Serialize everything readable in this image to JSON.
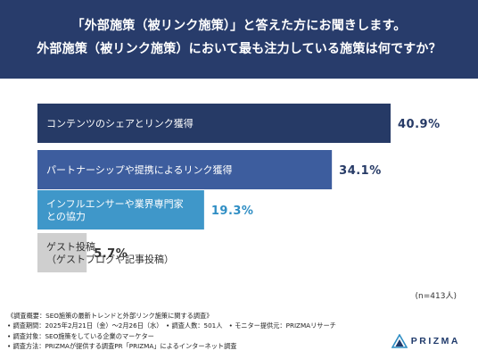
{
  "header": {
    "question_line1": "「外部施策（被リンク施策）」と答えた方にお聞きします。",
    "question_line2": "外部施策（被リンク施策）において最も注力している施策は何ですか？"
  },
  "chart_data": {
    "type": "bar",
    "orientation": "horizontal",
    "categories": [
      [
        "コンテンツのシェアとリンク獲得"
      ],
      [
        "パートナーシップや提携によるリンク獲得"
      ],
      [
        "インフルエンサーや業界専門家",
        "との協力"
      ],
      [
        "ゲスト投稿",
        "（ゲストブログや記事投稿）"
      ]
    ],
    "values": [
      40.9,
      34.1,
      19.3,
      5.7
    ],
    "value_labels": [
      "40.9%",
      "34.1%",
      "19.3%",
      "5.7%"
    ],
    "bar_colors": [
      "#263a66",
      "#3d5d9e",
      "#3f97c9",
      "#cfcfcf"
    ],
    "label_colors": [
      "#ffffff",
      "#ffffff",
      "#ffffff",
      "#333333"
    ],
    "value_label_colors": [
      "#263a66",
      "#263a66",
      "#2f8ec4",
      "#333333"
    ],
    "xlim": [
      0,
      40.9
    ],
    "legend": "none",
    "grid": false
  },
  "sample_note": "(n=413人)",
  "notes": [
    "《調査概要：SEO施策の最新トレンドと外部リンク施策に関する調査》",
    "• 調査期間：2025年2月21日（金）〜2月26日（水）　• 調査人数：501人　• モニター提供元：PRIZMAリサーチ",
    "• 調査対象：SEO施策をしている企業のマーケター",
    "• 調査方法：PRIZMAが提供する調査PR「PRIZMA」によるインターネット調査"
  ],
  "logo": {
    "text": "PRIZMA",
    "icon": "prizma-triangle-icon"
  }
}
